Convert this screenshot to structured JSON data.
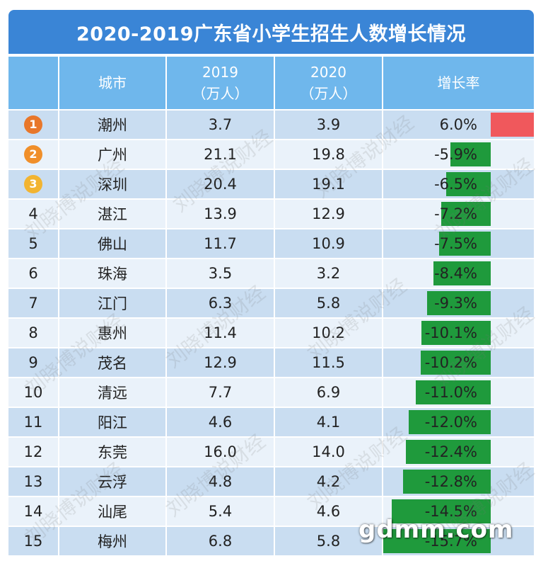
{
  "title": "2020-2019广东省小学生招生人数增长情况",
  "header": {
    "rank": "",
    "city": "城市",
    "y2019": "2019",
    "y2019_unit": "（万人）",
    "y2020": "2020",
    "y2020_unit": "（万人）",
    "rate": "增长率"
  },
  "rows": [
    {
      "rank": "1",
      "city": "潮州",
      "y2019": "3.7",
      "y2020": "3.9",
      "rate": "6.0%",
      "rate_value": 6.0
    },
    {
      "rank": "2",
      "city": "广州",
      "y2019": "21.1",
      "y2020": "19.8",
      "rate": "-5.9%",
      "rate_value": -5.9
    },
    {
      "rank": "3",
      "city": "深圳",
      "y2019": "20.4",
      "y2020": "19.1",
      "rate": "-6.5%",
      "rate_value": -6.5
    },
    {
      "rank": "4",
      "city": "湛江",
      "y2019": "13.9",
      "y2020": "12.9",
      "rate": "-7.2%",
      "rate_value": -7.2
    },
    {
      "rank": "5",
      "city": "佛山",
      "y2019": "11.7",
      "y2020": "10.9",
      "rate": "-7.5%",
      "rate_value": -7.5
    },
    {
      "rank": "6",
      "city": "珠海",
      "y2019": "3.5",
      "y2020": "3.2",
      "rate": "-8.4%",
      "rate_value": -8.4
    },
    {
      "rank": "7",
      "city": "江门",
      "y2019": "6.3",
      "y2020": "5.8",
      "rate": "-9.3%",
      "rate_value": -9.3
    },
    {
      "rank": "8",
      "city": "惠州",
      "y2019": "11.4",
      "y2020": "10.2",
      "rate": "-10.1%",
      "rate_value": -10.1
    },
    {
      "rank": "9",
      "city": "茂名",
      "y2019": "12.9",
      "y2020": "11.5",
      "rate": "-10.2%",
      "rate_value": -10.2
    },
    {
      "rank": "10",
      "city": "清远",
      "y2019": "7.7",
      "y2020": "6.9",
      "rate": "-11.0%",
      "rate_value": -11.0
    },
    {
      "rank": "11",
      "city": "阳江",
      "y2019": "4.6",
      "y2020": "4.1",
      "rate": "-12.0%",
      "rate_value": -12.0
    },
    {
      "rank": "12",
      "city": "东莞",
      "y2019": "16.0",
      "y2020": "14.0",
      "rate": "-12.4%",
      "rate_value": -12.4
    },
    {
      "rank": "13",
      "city": "云浮",
      "y2019": "4.8",
      "y2020": "4.2",
      "rate": "-12.8%",
      "rate_value": -12.8
    },
    {
      "rank": "14",
      "city": "汕尾",
      "y2019": "5.4",
      "y2020": "4.6",
      "rate": "-14.5%",
      "rate_value": -14.5
    },
    {
      "rank": "15",
      "city": "梅州",
      "y2019": "6.8",
      "y2020": "5.8",
      "rate": "-15.7%",
      "rate_value": -15.7
    }
  ],
  "colors": {
    "title_bg": "#3a85d6",
    "header_bg": "#6fb7ec",
    "row_odd": "#c9ddf1",
    "row_even": "#eaf2fa",
    "bar_negative": "#1f9a3c",
    "bar_positive": "#f0585c",
    "badge_1": "#e8772a",
    "badge_2": "#f08f2a",
    "badge_3": "#f2b431"
  },
  "watermark": "刘晓博说财经",
  "logo": "gdmm.com"
}
